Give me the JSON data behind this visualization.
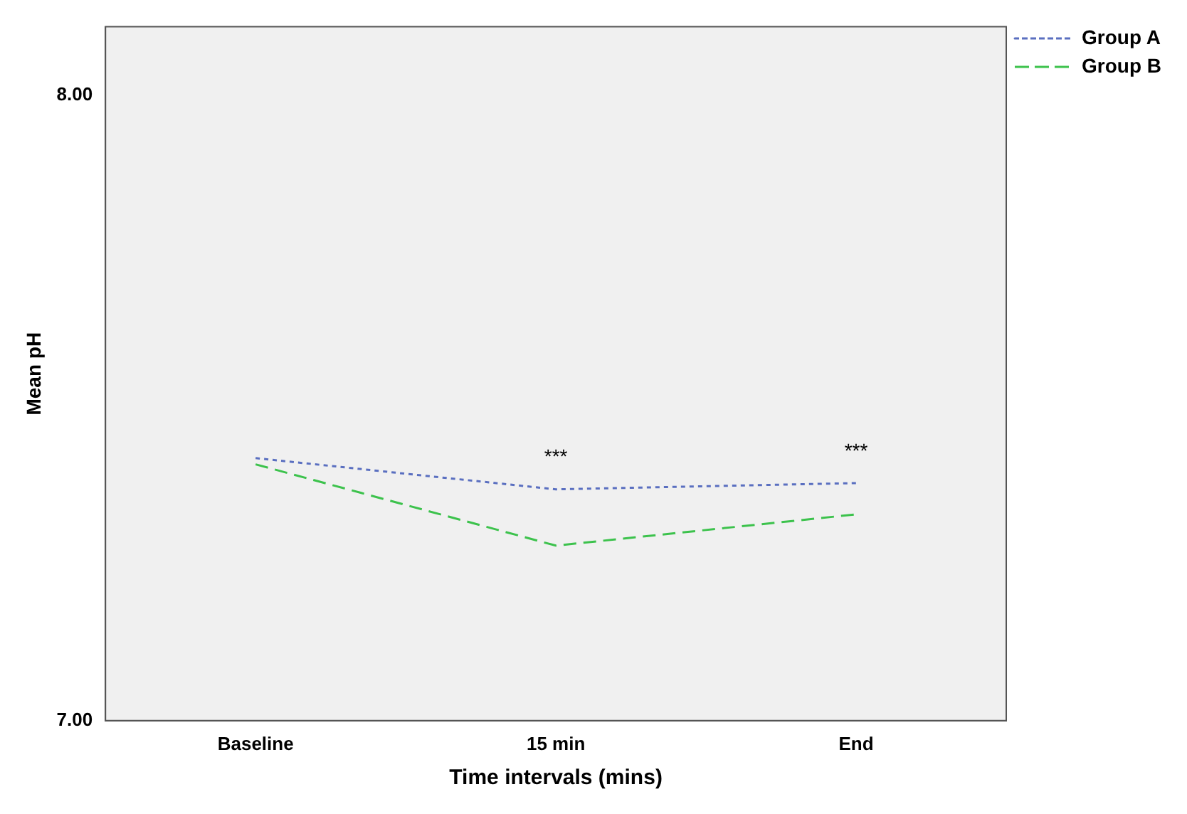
{
  "chart_data": {
    "type": "line",
    "xlabel": "Time intervals (mins)",
    "ylabel": "Mean pH",
    "categories": [
      "Baseline",
      "15 min",
      "End"
    ],
    "series": [
      {
        "name": "Group A",
        "color": "#5a6fc0",
        "values": [
          7.42,
          7.37,
          7.38
        ],
        "line_style": "dotted"
      },
      {
        "name": "Group B",
        "color": "#3cc24c",
        "values": [
          7.41,
          7.28,
          7.33
        ],
        "line_style": "dashed"
      }
    ],
    "ylim": [
      7,
      8.11
    ],
    "yticks": [
      {
        "value": 7,
        "label": "7.00"
      },
      {
        "value": 8,
        "label": "8.00"
      }
    ],
    "grid": false,
    "legend": "top right",
    "marker": "none",
    "annotations": [
      "***",
      "***"
    ]
  }
}
